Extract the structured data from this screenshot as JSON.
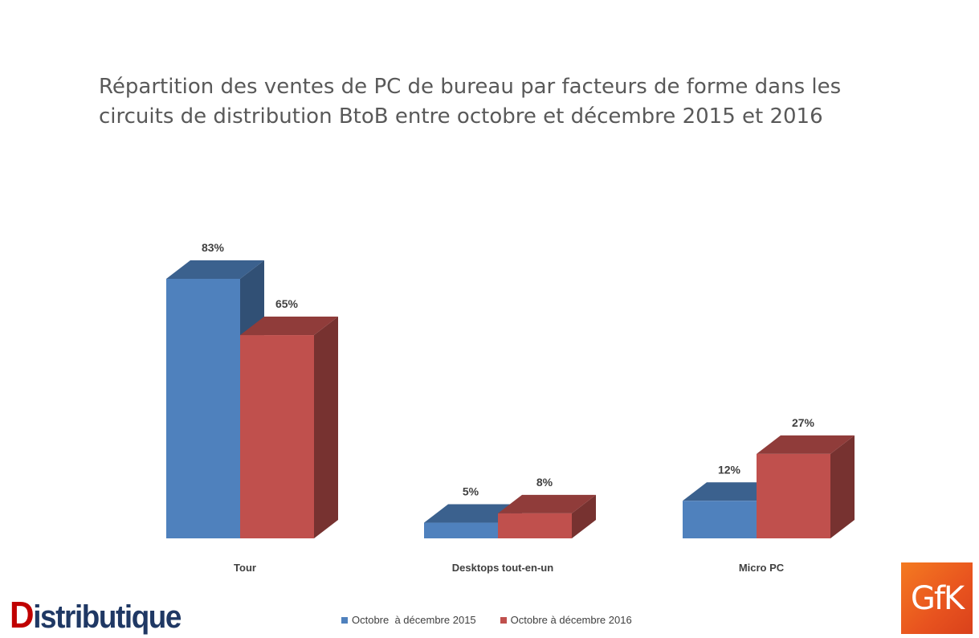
{
  "title": "Répartition des ventes de PC de bureau par facteurs de forme dans les circuits de distribution BtoB entre octobre et décembre 2015 et 2016",
  "brand": {
    "first_letter": "D",
    "rest": "istributique"
  },
  "logo": {
    "text": "GfK"
  },
  "legend": [
    {
      "label": "Octobre  à décembre 2015",
      "color": "#4f81bd"
    },
    {
      "label": "Octobre à décembre 2016",
      "color": "#c0504d"
    }
  ],
  "chart_data": {
    "type": "bar",
    "style": "3d-clustered-column",
    "categories": [
      "Tour",
      "Desktops tout-en-un",
      "Micro PC"
    ],
    "series": [
      {
        "name": "Octobre  à décembre 2015",
        "values": [
          83,
          5,
          12
        ],
        "labels": [
          "83%",
          "5%",
          "12%"
        ],
        "color": "#4f81bd"
      },
      {
        "name": "Octobre à décembre 2016",
        "values": [
          65,
          8,
          27
        ],
        "labels": [
          "65%",
          "8%",
          "27%"
        ],
        "color": "#c0504d"
      }
    ],
    "unit": "%",
    "ylim": [
      0,
      100
    ],
    "grid": false,
    "legend_position": "bottom"
  }
}
